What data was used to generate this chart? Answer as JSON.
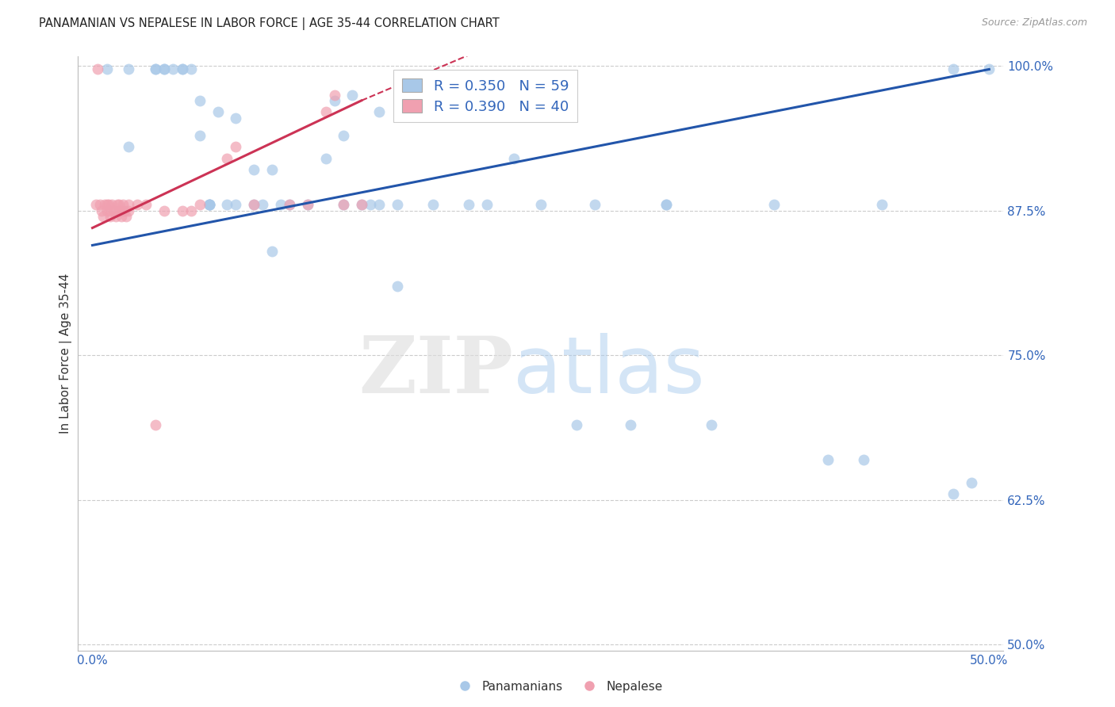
{
  "title": "PANAMANIAN VS NEPALESE IN LABOR FORCE | AGE 35-44 CORRELATION CHART",
  "source": "Source: ZipAtlas.com",
  "ylabel": "In Labor Force | Age 35-44",
  "xlim": [
    0.0,
    0.5
  ],
  "ylim": [
    0.5,
    1.005
  ],
  "yticks": [
    0.5,
    0.625,
    0.75,
    0.875,
    1.0
  ],
  "ytick_labels": [
    "50.0%",
    "62.5%",
    "75.0%",
    "87.5%",
    "100.0%"
  ],
  "xticks": [
    0.0,
    0.1,
    0.2,
    0.3,
    0.4,
    0.5
  ],
  "xtick_labels": [
    "0.0%",
    "",
    "",
    "",
    "",
    "50.0%"
  ],
  "legend_R_blue": "0.350",
  "legend_N_blue": "59",
  "legend_R_pink": "0.390",
  "legend_N_pink": "40",
  "blue_color": "#A8C8E8",
  "pink_color": "#F0A0B0",
  "blue_line_color": "#2255AA",
  "pink_line_color": "#CC3355",
  "blue_x": [
    0.008,
    0.02,
    0.035,
    0.035,
    0.04,
    0.04,
    0.045,
    0.05,
    0.05,
    0.055,
    0.06,
    0.065,
    0.07,
    0.075,
    0.08,
    0.08,
    0.09,
    0.09,
    0.095,
    0.1,
    0.1,
    0.105,
    0.11,
    0.12,
    0.13,
    0.135,
    0.14,
    0.145,
    0.15,
    0.155,
    0.16,
    0.17,
    0.19,
    0.21,
    0.22,
    0.235,
    0.25,
    0.27,
    0.3,
    0.32,
    0.345,
    0.38,
    0.44,
    0.48,
    0.02,
    0.06,
    0.065,
    0.065,
    0.065,
    0.14,
    0.16,
    0.17,
    0.28,
    0.32,
    0.41,
    0.43,
    0.48,
    0.49,
    0.5
  ],
  "blue_y": [
    0.997,
    0.997,
    0.997,
    0.997,
    0.997,
    0.997,
    0.997,
    0.997,
    0.997,
    0.997,
    0.94,
    0.88,
    0.96,
    0.88,
    0.955,
    0.88,
    0.91,
    0.88,
    0.88,
    0.91,
    0.84,
    0.88,
    0.88,
    0.88,
    0.92,
    0.97,
    0.88,
    0.975,
    0.88,
    0.88,
    0.88,
    0.88,
    0.88,
    0.88,
    0.88,
    0.92,
    0.88,
    0.69,
    0.69,
    0.88,
    0.69,
    0.88,
    0.88,
    0.997,
    0.93,
    0.97,
    0.88,
    0.88,
    0.88,
    0.94,
    0.96,
    0.81,
    0.88,
    0.88,
    0.66,
    0.66,
    0.63,
    0.64,
    0.997
  ],
  "pink_x": [
    0.002,
    0.003,
    0.004,
    0.005,
    0.006,
    0.007,
    0.008,
    0.008,
    0.009,
    0.01,
    0.01,
    0.011,
    0.012,
    0.013,
    0.014,
    0.015,
    0.015,
    0.016,
    0.016,
    0.017,
    0.018,
    0.019,
    0.02,
    0.02,
    0.025,
    0.03,
    0.035,
    0.04,
    0.05,
    0.055,
    0.06,
    0.075,
    0.08,
    0.09,
    0.11,
    0.12,
    0.13,
    0.135,
    0.14,
    0.15
  ],
  "pink_y": [
    0.88,
    0.997,
    0.88,
    0.875,
    0.87,
    0.88,
    0.88,
    0.875,
    0.88,
    0.875,
    0.87,
    0.88,
    0.875,
    0.87,
    0.88,
    0.88,
    0.875,
    0.875,
    0.87,
    0.88,
    0.875,
    0.87,
    0.88,
    0.875,
    0.88,
    0.88,
    0.69,
    0.875,
    0.875,
    0.875,
    0.88,
    0.92,
    0.93,
    0.88,
    0.88,
    0.88,
    0.96,
    0.975,
    0.88,
    0.88
  ],
  "blue_trendline": [
    0.0,
    0.5,
    0.845,
    0.997
  ],
  "pink_trendline_solid": [
    0.0,
    0.15,
    0.86,
    0.97
  ],
  "pink_trendline_dash": [
    0.15,
    0.5,
    0.97,
    1.2
  ]
}
